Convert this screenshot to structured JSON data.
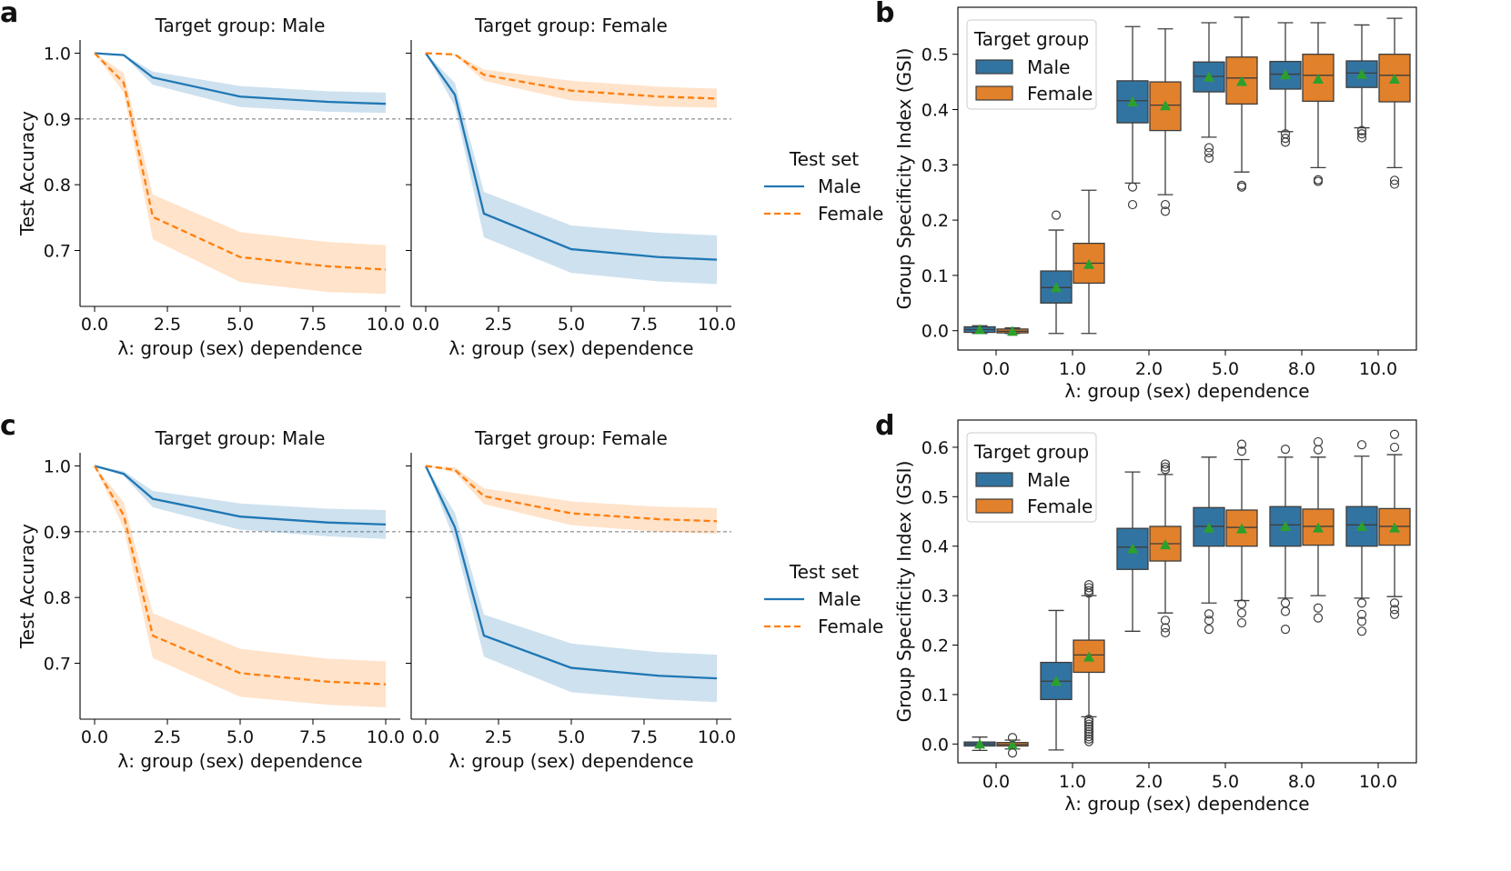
{
  "colors": {
    "male": "#1f77b4",
    "female": "#ff7f0e",
    "box_male": "#3274a1",
    "box_female": "#e1812c",
    "mean_marker": "#2ca02c",
    "ref_line": "#999999"
  },
  "panels": [
    {
      "letter": "a",
      "titles": [
        "Target group: Male",
        "Target group: Female"
      ],
      "legend": {
        "title": "Test set",
        "entries": [
          "Male",
          "Female"
        ]
      }
    },
    {
      "letter": "b"
    },
    {
      "letter": "c",
      "titles": [
        "Target group: Male",
        "Target group: Female"
      ],
      "legend": {
        "title": "Test set",
        "entries": [
          "Male",
          "Female"
        ]
      }
    },
    {
      "letter": "d"
    }
  ],
  "chart_data": [
    {
      "id": "a1",
      "type": "line",
      "title": "Target group: Male",
      "xlabel": "λ: group (sex) dependence",
      "ylabel": "Test Accuracy",
      "xlim": [
        -0.5,
        10.5
      ],
      "ylim": [
        0.615,
        1.02
      ],
      "xticks": [
        "0.0",
        "2.5",
        "5.0",
        "7.5",
        "10.0"
      ],
      "xtick_values": [
        0,
        2.5,
        5,
        7.5,
        10
      ],
      "yticks": [
        "1.0",
        "0.9",
        "0.8",
        "0.7"
      ],
      "ytick_values": [
        1.0,
        0.9,
        0.8,
        0.7
      ],
      "hline": 0.9,
      "x": [
        0,
        1,
        2,
        5,
        8,
        10
      ],
      "series": [
        {
          "name": "Male",
          "style": "solid",
          "values": [
            1.0,
            0.997,
            0.963,
            0.934,
            0.926,
            0.923
          ],
          "lower": [
            1.0,
            0.996,
            0.952,
            0.918,
            0.911,
            0.909
          ],
          "upper": [
            1.0,
            0.998,
            0.972,
            0.95,
            0.942,
            0.94
          ]
        },
        {
          "name": "Female",
          "style": "dashed",
          "values": [
            1.0,
            0.955,
            0.751,
            0.69,
            0.676,
            0.671
          ],
          "lower": [
            1.0,
            0.94,
            0.717,
            0.652,
            0.637,
            0.634
          ],
          "upper": [
            1.0,
            0.97,
            0.785,
            0.728,
            0.713,
            0.708
          ]
        }
      ]
    },
    {
      "id": "a2",
      "type": "line",
      "title": "Target group: Female",
      "xlabel": "λ: group (sex) dependence",
      "ylabel": "",
      "xlim": [
        -0.5,
        10.5
      ],
      "ylim": [
        0.615,
        1.02
      ],
      "xticks": [
        "0.0",
        "2.5",
        "5.0",
        "7.5",
        "10.0"
      ],
      "xtick_values": [
        0,
        2.5,
        5,
        7.5,
        10
      ],
      "yticks": [],
      "ytick_values": [
        1.0,
        0.9,
        0.8,
        0.7
      ],
      "hline": 0.9,
      "x": [
        0,
        1,
        2,
        5,
        8,
        10
      ],
      "series": [
        {
          "name": "Male",
          "style": "solid",
          "values": [
            1.0,
            0.937,
            0.756,
            0.702,
            0.69,
            0.686
          ],
          "lower": [
            1.0,
            0.919,
            0.72,
            0.666,
            0.653,
            0.649
          ],
          "upper": [
            1.0,
            0.955,
            0.789,
            0.738,
            0.727,
            0.723
          ]
        },
        {
          "name": "Female",
          "style": "dashed",
          "values": [
            1.0,
            0.998,
            0.967,
            0.943,
            0.934,
            0.931
          ],
          "lower": [
            1.0,
            0.997,
            0.958,
            0.928,
            0.919,
            0.917
          ],
          "upper": [
            1.0,
            0.999,
            0.975,
            0.958,
            0.949,
            0.946
          ]
        }
      ]
    },
    {
      "id": "b",
      "type": "box",
      "xlabel": "λ: group (sex) dependence",
      "ylabel": "Group Specificity Index (GSI)",
      "categories": [
        "0.0",
        "1.0",
        "2.0",
        "5.0",
        "8.0",
        "10.0"
      ],
      "ylim": [
        -0.035,
        0.585
      ],
      "yticks": [
        "0.0",
        "0.1",
        "0.2",
        "0.3",
        "0.4",
        "0.5"
      ],
      "ytick_values": [
        0,
        0.1,
        0.2,
        0.3,
        0.4,
        0.5
      ],
      "legend": {
        "title": "Target group",
        "entries": [
          "Male",
          "Female"
        ]
      },
      "series": [
        {
          "name": "Male",
          "boxes": [
            {
              "wlo": -0.005,
              "q1": -0.003,
              "med": 0.002,
              "q3": 0.007,
              "whi": 0.009,
              "mean": 0.002,
              "outliers": []
            },
            {
              "wlo": -0.005,
              "q1": 0.05,
              "med": 0.078,
              "q3": 0.108,
              "whi": 0.182,
              "mean": 0.078,
              "outliers": [
                0.209
              ]
            },
            {
              "wlo": 0.267,
              "q1": 0.376,
              "med": 0.416,
              "q3": 0.452,
              "whi": 0.55,
              "mean": 0.414,
              "outliers": [
                0.26,
                0.228
              ]
            },
            {
              "wlo": 0.35,
              "q1": 0.432,
              "med": 0.46,
              "q3": 0.486,
              "whi": 0.557,
              "mean": 0.459,
              "outliers": [
                0.331,
                0.322,
                0.312
              ]
            },
            {
              "wlo": 0.36,
              "q1": 0.437,
              "med": 0.464,
              "q3": 0.487,
              "whi": 0.557,
              "mean": 0.463,
              "outliers": [
                0.356,
                0.348,
                0.341
              ]
            },
            {
              "wlo": 0.367,
              "q1": 0.44,
              "med": 0.466,
              "q3": 0.488,
              "whi": 0.553,
              "mean": 0.464,
              "outliers": [
                0.362,
                0.356,
                0.349
              ]
            }
          ]
        },
        {
          "name": "Female",
          "boxes": [
            {
              "wlo": -0.005,
              "q1": -0.004,
              "med": -0.001,
              "q3": 0.003,
              "whi": 0.005,
              "mean": -0.001,
              "outliers": []
            },
            {
              "wlo": -0.005,
              "q1": 0.086,
              "med": 0.122,
              "q3": 0.158,
              "whi": 0.254,
              "mean": 0.12,
              "outliers": []
            },
            {
              "wlo": 0.246,
              "q1": 0.362,
              "med": 0.408,
              "q3": 0.45,
              "whi": 0.546,
              "mean": 0.407,
              "outliers": [
                0.228,
                0.216
              ]
            },
            {
              "wlo": 0.287,
              "q1": 0.41,
              "med": 0.457,
              "q3": 0.495,
              "whi": 0.567,
              "mean": 0.451,
              "outliers": [
                0.263,
                0.26
              ]
            },
            {
              "wlo": 0.295,
              "q1": 0.415,
              "med": 0.462,
              "q3": 0.5,
              "whi": 0.557,
              "mean": 0.455,
              "outliers": [
                0.273,
                0.27
              ]
            },
            {
              "wlo": 0.295,
              "q1": 0.414,
              "med": 0.462,
              "q3": 0.5,
              "whi": 0.565,
              "mean": 0.455,
              "outliers": [
                0.272,
                0.265
              ]
            }
          ]
        }
      ]
    },
    {
      "id": "c1",
      "type": "line",
      "title": "Target group: Male",
      "xlabel": "λ: group (sex) dependence",
      "ylabel": "Test Accuracy",
      "xlim": [
        -0.5,
        10.5
      ],
      "ylim": [
        0.615,
        1.02
      ],
      "xticks": [
        "0.0",
        "2.5",
        "5.0",
        "7.5",
        "10.0"
      ],
      "xtick_values": [
        0,
        2.5,
        5,
        7.5,
        10
      ],
      "yticks": [
        "1.0",
        "0.9",
        "0.8",
        "0.7"
      ],
      "ytick_values": [
        1.0,
        0.9,
        0.8,
        0.7
      ],
      "hline": 0.9,
      "x": [
        0,
        1,
        2,
        5,
        8,
        10
      ],
      "series": [
        {
          "name": "Male",
          "style": "solid",
          "values": [
            1.0,
            0.988,
            0.95,
            0.923,
            0.914,
            0.911
          ],
          "lower": [
            1.0,
            0.985,
            0.937,
            0.903,
            0.893,
            0.889
          ],
          "upper": [
            1.0,
            0.992,
            0.962,
            0.943,
            0.935,
            0.933
          ]
        },
        {
          "name": "Female",
          "style": "dashed",
          "values": [
            1.0,
            0.925,
            0.742,
            0.685,
            0.672,
            0.668
          ],
          "lower": [
            1.0,
            0.905,
            0.708,
            0.649,
            0.637,
            0.633
          ],
          "upper": [
            1.0,
            0.945,
            0.776,
            0.722,
            0.707,
            0.703
          ]
        }
      ]
    },
    {
      "id": "c2",
      "type": "line",
      "title": "Target group: Female",
      "xlabel": "λ: group (sex) dependence",
      "ylabel": "",
      "xlim": [
        -0.5,
        10.5
      ],
      "ylim": [
        0.615,
        1.02
      ],
      "xticks": [
        "0.0",
        "2.5",
        "5.0",
        "7.5",
        "10.0"
      ],
      "xtick_values": [
        0,
        2.5,
        5,
        7.5,
        10
      ],
      "yticks": [],
      "ytick_values": [
        1.0,
        0.9,
        0.8,
        0.7
      ],
      "hline": 0.9,
      "x": [
        0,
        1,
        2,
        5,
        8,
        10
      ],
      "series": [
        {
          "name": "Male",
          "style": "solid",
          "values": [
            1.0,
            0.907,
            0.742,
            0.693,
            0.681,
            0.677
          ],
          "lower": [
            1.0,
            0.885,
            0.71,
            0.656,
            0.645,
            0.641
          ],
          "upper": [
            1.0,
            0.929,
            0.774,
            0.73,
            0.717,
            0.713
          ]
        },
        {
          "name": "Female",
          "style": "dashed",
          "values": [
            1.0,
            0.994,
            0.954,
            0.928,
            0.919,
            0.916
          ],
          "lower": [
            1.0,
            0.99,
            0.942,
            0.91,
            0.9,
            0.897
          ],
          "upper": [
            1.0,
            0.998,
            0.966,
            0.946,
            0.938,
            0.936
          ]
        }
      ]
    },
    {
      "id": "d",
      "type": "box",
      "xlabel": "λ: group (sex) dependence",
      "ylabel": "Group Specificity Index (GSI)",
      "categories": [
        "0.0",
        "1.0",
        "2.0",
        "5.0",
        "8.0",
        "10.0"
      ],
      "ylim": [
        -0.038,
        0.655
      ],
      "yticks": [
        "0.0",
        "0.1",
        "0.2",
        "0.3",
        "0.4",
        "0.5",
        "0.6"
      ],
      "ytick_values": [
        0,
        0.1,
        0.2,
        0.3,
        0.4,
        0.5,
        0.6
      ],
      "legend": {
        "title": "Target group",
        "entries": [
          "Male",
          "Female"
        ]
      },
      "series": [
        {
          "name": "Male",
          "boxes": [
            {
              "wlo": -0.013,
              "q1": -0.004,
              "med": 0.0,
              "q3": 0.004,
              "whi": 0.014,
              "mean": 0.0,
              "outliers": []
            },
            {
              "wlo": -0.012,
              "q1": 0.09,
              "med": 0.127,
              "q3": 0.165,
              "whi": 0.27,
              "mean": 0.127,
              "outliers": []
            },
            {
              "wlo": 0.228,
              "q1": 0.353,
              "med": 0.398,
              "q3": 0.436,
              "whi": 0.55,
              "mean": 0.395,
              "outliers": []
            },
            {
              "wlo": 0.285,
              "q1": 0.4,
              "med": 0.44,
              "q3": 0.478,
              "whi": 0.58,
              "mean": 0.437,
              "outliers": [
                0.263,
                0.25,
                0.232
              ]
            },
            {
              "wlo": 0.295,
              "q1": 0.4,
              "med": 0.443,
              "q3": 0.48,
              "whi": 0.58,
              "mean": 0.44,
              "outliers": [
                0.596,
                0.285,
                0.268,
                0.232
              ]
            },
            {
              "wlo": 0.295,
              "q1": 0.4,
              "med": 0.443,
              "q3": 0.48,
              "whi": 0.582,
              "mean": 0.44,
              "outliers": [
                0.605,
                0.285,
                0.262,
                0.248,
                0.228
              ]
            }
          ]
        },
        {
          "name": "Female",
          "boxes": [
            {
              "wlo": -0.01,
              "q1": -0.004,
              "med": -0.001,
              "q3": 0.003,
              "whi": 0.008,
              "mean": -0.002,
              "outliers": [
                0.013,
                -0.018
              ]
            },
            {
              "wlo": 0.055,
              "q1": 0.145,
              "med": 0.18,
              "q3": 0.21,
              "whi": 0.3,
              "mean": 0.176,
              "outliers": [
                0.322,
                0.316,
                0.31,
                0.305,
                0.05,
                0.045,
                0.04,
                0.035,
                0.03,
                0.025,
                0.02,
                0.015,
                0.01,
                0.005
              ]
            },
            {
              "wlo": 0.265,
              "q1": 0.37,
              "med": 0.405,
              "q3": 0.44,
              "whi": 0.545,
              "mean": 0.403,
              "outliers": [
                0.566,
                0.56,
                0.555,
                0.25,
                0.235,
                0.225
              ]
            },
            {
              "wlo": 0.29,
              "q1": 0.4,
              "med": 0.438,
              "q3": 0.473,
              "whi": 0.575,
              "mean": 0.435,
              "outliers": [
                0.606,
                0.592,
                0.283,
                0.265,
                0.245
              ]
            },
            {
              "wlo": 0.3,
              "q1": 0.402,
              "med": 0.44,
              "q3": 0.475,
              "whi": 0.58,
              "mean": 0.437,
              "outliers": [
                0.611,
                0.595,
                0.275,
                0.255
              ]
            },
            {
              "wlo": 0.298,
              "q1": 0.402,
              "med": 0.44,
              "q3": 0.476,
              "whi": 0.585,
              "mean": 0.437,
              "outliers": [
                0.626,
                0.6,
                0.285,
                0.272,
                0.262
              ]
            }
          ]
        }
      ]
    }
  ]
}
